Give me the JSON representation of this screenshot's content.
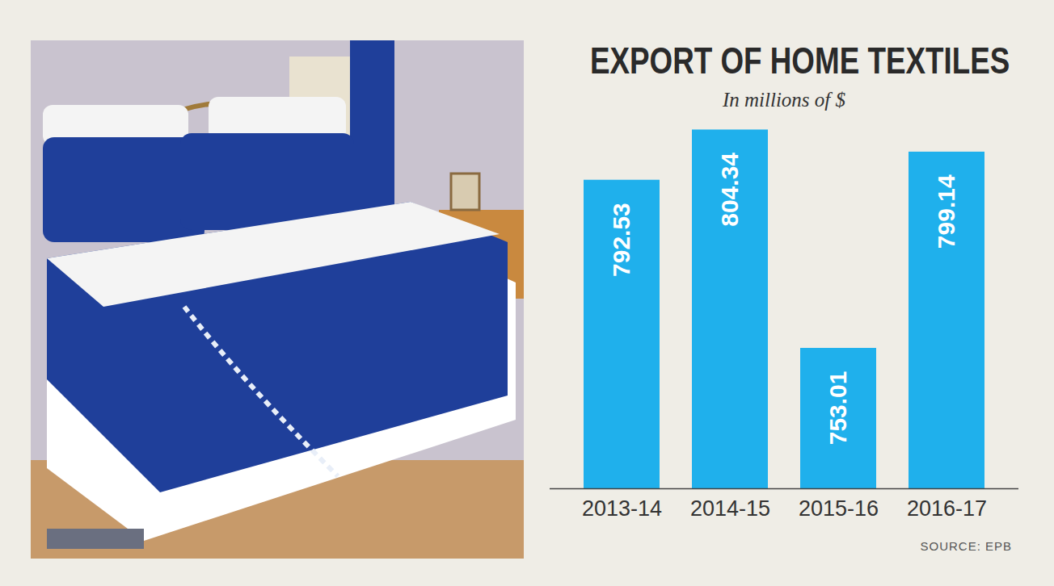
{
  "chart_data": {
    "type": "bar",
    "title": "EXPORT OF HOME TEXTILES",
    "subtitle": "In millions of $",
    "categories": [
      "2013-14",
      "2014-15",
      "2015-16",
      "2016-17"
    ],
    "values": [
      792.53,
      804.34,
      753.01,
      799.14
    ],
    "color": "#1fb0ec",
    "ylim": [
      720,
      805
    ],
    "data_labels": true,
    "tick_labels": "x",
    "source": "SOURCE: EPB"
  }
}
